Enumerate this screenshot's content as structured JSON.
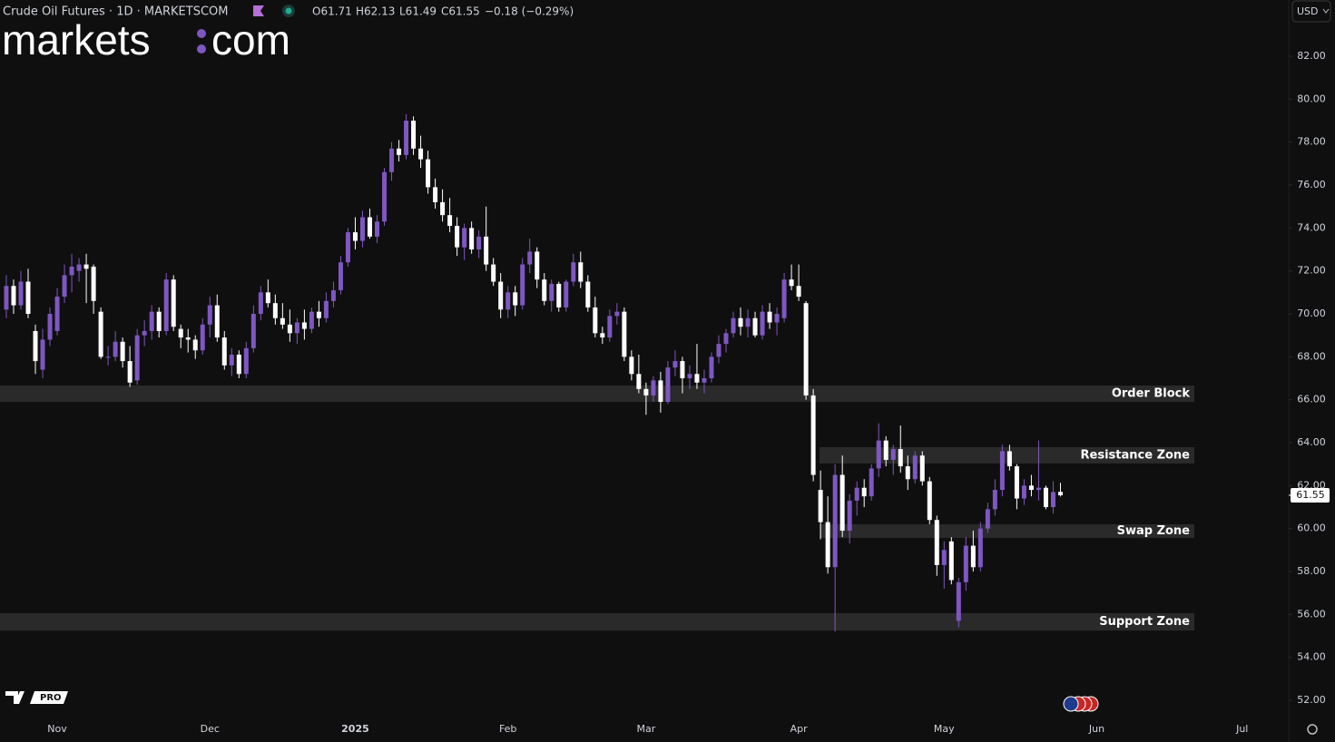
{
  "chart_data": {
    "type": "candlestick",
    "title": "Crude Oil Futures · 1D · MARKETSCOM",
    "legend_values": [
      "O61.71",
      "H62.13",
      "L61.49",
      "C61.55",
      "−0.18 (−0.29%)"
    ],
    "logo": [
      "markets",
      "com"
    ],
    "currency": "USD",
    "badge": "PRO",
    "up_color": "#7e57c2",
    "down_color": "#ffffff",
    "last_price": 61.55,
    "ylim": [
      51.24,
      84.62
    ],
    "yticks": [
      {
        "value": 52,
        "label": "52.00"
      },
      {
        "value": 54,
        "label": "54.00"
      },
      {
        "value": 56,
        "label": "56.00"
      },
      {
        "value": 58,
        "label": "58.00"
      },
      {
        "value": 60,
        "label": "60.00"
      },
      {
        "value": 62,
        "label": "62.00"
      },
      {
        "value": 64,
        "label": "64.00"
      },
      {
        "value": 66,
        "label": "66.00"
      },
      {
        "value": 68,
        "label": "68.00"
      },
      {
        "value": 70,
        "label": "70.00"
      },
      {
        "value": 72,
        "label": "72.00"
      },
      {
        "value": 74,
        "label": "74.00"
      },
      {
        "value": 76,
        "label": "76.00"
      },
      {
        "value": 78,
        "label": "78.00"
      },
      {
        "value": 80,
        "label": "80.00"
      },
      {
        "value": 82,
        "label": "82.00"
      }
    ],
    "xlim": [
      -0.87,
      176.4
    ],
    "xticks": [
      {
        "value": 7,
        "label": "Nov"
      },
      {
        "value": 28,
        "label": "Dec"
      },
      {
        "value": 48,
        "label": "2025"
      },
      {
        "value": 69,
        "label": "Feb"
      },
      {
        "value": 88,
        "label": "Mar"
      },
      {
        "value": 109,
        "label": "Apr"
      },
      {
        "value": 129,
        "label": "May"
      },
      {
        "value": 150,
        "label": "Jun"
      },
      {
        "value": 170,
        "label": "Jul"
      }
    ],
    "zones": [
      {
        "label": "Order Block",
        "low": 65.9,
        "high": 66.66
      },
      {
        "label": "Resistance Zone",
        "low": 63.03,
        "high": 63.79
      },
      {
        "label": "Swap Zone",
        "low": 59.56,
        "high": 60.2
      },
      {
        "label": "Support Zone",
        "low": 55.25,
        "high": 56.06
      }
    ],
    "ohlc": [
      [
        70.2,
        71.8,
        69.8,
        71.3
      ],
      [
        71.3,
        71.6,
        70.0,
        70.4
      ],
      [
        70.4,
        72.0,
        70.2,
        71.5
      ],
      [
        71.5,
        72.1,
        69.8,
        70.0
      ],
      [
        69.2,
        69.5,
        67.2,
        67.8
      ],
      [
        67.4,
        69.3,
        67.0,
        68.8
      ],
      [
        68.8,
        70.3,
        68.5,
        70.0
      ],
      [
        69.2,
        71.2,
        69.0,
        70.8
      ],
      [
        70.8,
        72.3,
        70.5,
        71.8
      ],
      [
        71.8,
        72.8,
        71.0,
        72.2
      ],
      [
        72.0,
        72.6,
        71.5,
        72.3
      ],
      [
        72.3,
        72.8,
        70.5,
        72.1
      ],
      [
        72.2,
        72.3,
        70.0,
        70.6
      ],
      [
        70.1,
        70.3,
        67.9,
        68.0
      ],
      [
        68.0,
        68.5,
        67.6,
        68.0
      ],
      [
        68.0,
        69.2,
        67.8,
        68.7
      ],
      [
        68.7,
        68.9,
        67.5,
        67.8
      ],
      [
        67.8,
        68.5,
        66.6,
        66.8
      ],
      [
        66.9,
        69.3,
        66.7,
        69.0
      ],
      [
        69.0,
        69.7,
        68.5,
        69.2
      ],
      [
        69.2,
        70.4,
        68.8,
        70.1
      ],
      [
        70.1,
        70.3,
        68.9,
        69.2
      ],
      [
        69.2,
        71.9,
        69.0,
        71.6
      ],
      [
        71.6,
        71.8,
        69.2,
        69.4
      ],
      [
        69.3,
        69.5,
        68.4,
        68.9
      ],
      [
        68.9,
        69.3,
        68.2,
        68.8
      ],
      [
        68.8,
        69.0,
        67.9,
        68.3
      ],
      [
        68.3,
        69.8,
        68.1,
        69.5
      ],
      [
        69.5,
        70.8,
        68.9,
        70.4
      ],
      [
        70.4,
        70.9,
        68.7,
        68.9
      ],
      [
        68.9,
        69.2,
        67.4,
        67.6
      ],
      [
        67.6,
        68.4,
        67.1,
        68.1
      ],
      [
        68.1,
        68.3,
        67.0,
        67.2
      ],
      [
        67.2,
        68.7,
        67.0,
        68.4
      ],
      [
        68.4,
        70.4,
        68.2,
        70.0
      ],
      [
        70.0,
        71.3,
        69.7,
        71.0
      ],
      [
        71.0,
        71.6,
        70.3,
        70.5
      ],
      [
        70.5,
        70.9,
        69.5,
        69.8
      ],
      [
        69.8,
        70.5,
        69.3,
        69.5
      ],
      [
        69.5,
        70.2,
        68.7,
        69.1
      ],
      [
        69.1,
        69.8,
        68.6,
        69.6
      ],
      [
        69.6,
        70.2,
        68.8,
        69.3
      ],
      [
        69.3,
        70.3,
        69.1,
        70.1
      ],
      [
        70.1,
        70.6,
        69.4,
        69.8
      ],
      [
        69.8,
        71.0,
        69.6,
        70.6
      ],
      [
        70.6,
        71.5,
        70.3,
        71.1
      ],
      [
        71.1,
        72.7,
        70.9,
        72.4
      ],
      [
        72.4,
        74.0,
        72.2,
        73.8
      ],
      [
        73.8,
        74.5,
        73.0,
        73.4
      ],
      [
        73.4,
        74.8,
        73.1,
        74.5
      ],
      [
        74.5,
        74.9,
        73.5,
        73.6
      ],
      [
        73.6,
        74.6,
        73.3,
        74.3
      ],
      [
        74.3,
        76.8,
        74.1,
        76.6
      ],
      [
        76.6,
        78.0,
        76.2,
        77.7
      ],
      [
        77.7,
        78.1,
        77.1,
        77.4
      ],
      [
        77.4,
        79.3,
        77.2,
        79.0
      ],
      [
        79.0,
        79.2,
        77.4,
        77.7
      ],
      [
        77.7,
        78.3,
        76.8,
        77.2
      ],
      [
        77.2,
        77.6,
        75.6,
        75.9
      ],
      [
        75.9,
        76.3,
        74.9,
        75.2
      ],
      [
        75.2,
        75.8,
        74.3,
        74.6
      ],
      [
        74.6,
        75.4,
        73.8,
        74.1
      ],
      [
        74.1,
        74.5,
        72.7,
        73.1
      ],
      [
        73.1,
        74.2,
        72.5,
        74.0
      ],
      [
        74.0,
        74.3,
        72.8,
        73.0
      ],
      [
        73.0,
        73.9,
        72.6,
        73.6
      ],
      [
        73.6,
        75.0,
        72.0,
        72.3
      ],
      [
        72.3,
        72.6,
        71.3,
        71.5
      ],
      [
        71.5,
        71.9,
        69.8,
        70.2
      ],
      [
        70.2,
        71.3,
        69.8,
        71.0
      ],
      [
        71.0,
        71.3,
        69.9,
        70.4
      ],
      [
        70.4,
        72.6,
        70.2,
        72.3
      ],
      [
        72.3,
        73.5,
        71.9,
        72.9
      ],
      [
        72.9,
        73.1,
        71.2,
        71.6
      ],
      [
        71.6,
        71.9,
        70.4,
        70.6
      ],
      [
        70.6,
        71.6,
        70.1,
        71.4
      ],
      [
        71.4,
        71.5,
        70.1,
        70.3
      ],
      [
        70.3,
        71.6,
        70.1,
        71.5
      ],
      [
        71.5,
        72.8,
        71.3,
        72.4
      ],
      [
        72.4,
        72.9,
        71.2,
        71.5
      ],
      [
        71.5,
        71.8,
        70.1,
        70.3
      ],
      [
        70.3,
        70.8,
        68.9,
        69.1
      ],
      [
        69.1,
        69.4,
        68.6,
        68.9
      ],
      [
        68.9,
        70.2,
        68.7,
        69.9
      ],
      [
        69.9,
        70.5,
        69.5,
        70.1
      ],
      [
        70.1,
        70.3,
        67.8,
        68.0
      ],
      [
        68.0,
        68.3,
        66.9,
        67.2
      ],
      [
        67.2,
        68.1,
        66.3,
        66.5
      ],
      [
        66.5,
        66.8,
        65.3,
        66.2
      ],
      [
        66.2,
        67.1,
        65.9,
        66.9
      ],
      [
        66.9,
        67.3,
        65.4,
        65.9
      ],
      [
        65.9,
        67.8,
        65.8,
        67.5
      ],
      [
        67.5,
        68.3,
        67.1,
        67.8
      ],
      [
        67.8,
        68.0,
        66.3,
        67.0
      ],
      [
        67.0,
        67.6,
        66.5,
        67.2
      ],
      [
        67.2,
        68.6,
        66.5,
        66.8
      ],
      [
        66.8,
        67.4,
        66.3,
        67.0
      ],
      [
        67.0,
        68.2,
        66.8,
        68.0
      ],
      [
        68.0,
        69.0,
        67.7,
        68.6
      ],
      [
        68.6,
        69.3,
        68.2,
        69.1
      ],
      [
        69.1,
        70.1,
        68.9,
        69.8
      ],
      [
        69.8,
        70.3,
        69.0,
        69.4
      ],
      [
        69.4,
        70.2,
        68.9,
        69.8
      ],
      [
        69.8,
        70.1,
        68.9,
        69.0
      ],
      [
        69.0,
        70.4,
        68.8,
        70.1
      ],
      [
        70.1,
        70.5,
        69.3,
        69.6
      ],
      [
        69.6,
        70.3,
        69.0,
        70.0
      ],
      [
        69.8,
        71.9,
        69.6,
        71.6
      ],
      [
        71.6,
        72.3,
        71.1,
        71.3
      ],
      [
        71.3,
        72.3,
        70.6,
        70.8
      ],
      [
        70.5,
        70.6,
        66.0,
        66.2
      ],
      [
        66.2,
        66.5,
        62.2,
        62.5
      ],
      [
        61.8,
        62.7,
        59.5,
        60.3
      ],
      [
        60.3,
        61.5,
        57.9,
        58.2
      ],
      [
        58.2,
        63.0,
        55.2,
        62.5
      ],
      [
        62.5,
        63.4,
        59.6,
        59.9
      ],
      [
        59.9,
        61.6,
        59.3,
        61.3
      ],
      [
        61.3,
        62.2,
        60.6,
        61.9
      ],
      [
        61.9,
        62.3,
        61.0,
        61.5
      ],
      [
        61.5,
        63.0,
        61.3,
        62.8
      ],
      [
        62.8,
        64.9,
        62.4,
        64.1
      ],
      [
        64.1,
        64.3,
        62.9,
        63.2
      ],
      [
        63.2,
        63.9,
        62.5,
        63.7
      ],
      [
        63.7,
        64.8,
        62.6,
        62.9
      ],
      [
        62.9,
        63.4,
        61.8,
        62.3
      ],
      [
        62.3,
        63.6,
        62.1,
        63.4
      ],
      [
        63.4,
        63.6,
        62.0,
        62.2
      ],
      [
        62.2,
        62.4,
        60.2,
        60.4
      ],
      [
        60.4,
        60.6,
        57.8,
        58.3
      ],
      [
        58.3,
        59.4,
        57.2,
        59.0
      ],
      [
        59.4,
        59.6,
        57.4,
        57.6
      ],
      [
        55.7,
        57.7,
        55.4,
        57.5
      ],
      [
        57.5,
        59.6,
        57.1,
        59.2
      ],
      [
        59.2,
        59.9,
        58.0,
        58.2
      ],
      [
        58.2,
        60.3,
        58.0,
        60.0
      ],
      [
        60.0,
        61.2,
        59.8,
        60.9
      ],
      [
        60.9,
        62.3,
        60.6,
        61.8
      ],
      [
        61.8,
        63.9,
        61.5,
        63.6
      ],
      [
        63.6,
        63.9,
        62.7,
        62.9
      ],
      [
        62.9,
        63.0,
        60.9,
        61.4
      ],
      [
        61.4,
        62.3,
        61.1,
        62.0
      ],
      [
        62.0,
        62.5,
        61.5,
        61.8
      ],
      [
        61.8,
        64.1,
        61.3,
        61.9
      ],
      [
        61.9,
        62.0,
        60.9,
        61.0
      ],
      [
        61.0,
        62.2,
        60.7,
        61.7
      ],
      [
        61.71,
        62.13,
        61.49,
        61.55
      ]
    ]
  }
}
